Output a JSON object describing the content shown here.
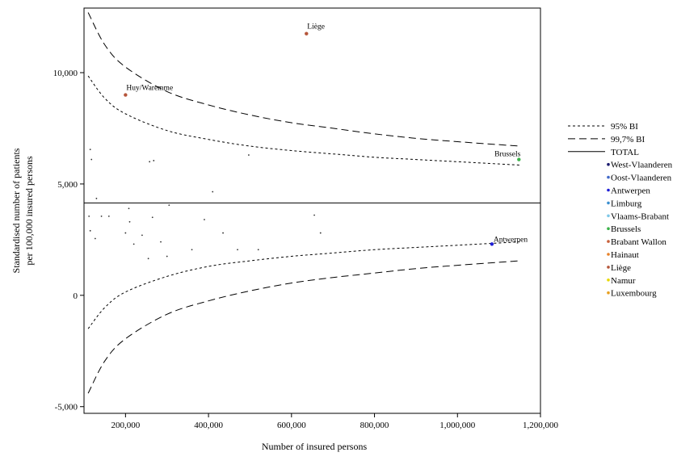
{
  "chart_data": {
    "type": "scatter",
    "title": "",
    "xlabel": "Number of insured persons",
    "ylabel_lines": [
      "Standardised number of patients",
      "per 100,000 insured persons"
    ],
    "xlim": [
      100000,
      1200000
    ],
    "ylim": [
      -5300,
      12900
    ],
    "x_ticks": [
      200000,
      400000,
      600000,
      800000,
      1000000,
      1200000
    ],
    "x_tick_labels": [
      "200,000",
      "400,000",
      "600,000",
      "800,000",
      "1,000,000",
      "1,200,000"
    ],
    "y_ticks": [
      -5000,
      0,
      5000,
      10000
    ],
    "y_tick_labels": [
      "-5,000",
      "0",
      "5,000",
      "10,000"
    ],
    "grid": false,
    "legend_position": "right",
    "total": 4150,
    "legend": [
      {
        "label": "95% BI",
        "style": "short-dash"
      },
      {
        "label": "99,7% BI",
        "style": "long-dash"
      },
      {
        "label": "TOTAL",
        "style": "solid"
      },
      {
        "label": "West-Vlaanderen",
        "style": "dot",
        "color": "#1a1a6e"
      },
      {
        "label": "Oost-Vlaanderen",
        "style": "dot",
        "color": "#4169c8"
      },
      {
        "label": "Antwerpen",
        "style": "dot",
        "color": "#1f1fd6"
      },
      {
        "label": "Limburg",
        "style": "dot",
        "color": "#3a8fd0"
      },
      {
        "label": "Vlaams-Brabant",
        "style": "dot",
        "color": "#7ec8e8"
      },
      {
        "label": "Brussels",
        "style": "dot",
        "color": "#3cb34a"
      },
      {
        "label": "Brabant Wallon",
        "style": "dot",
        "color": "#c8603a"
      },
      {
        "label": "Hainaut",
        "style": "dot",
        "color": "#e8822a"
      },
      {
        "label": "Liège",
        "style": "dot",
        "color": "#b5553a"
      },
      {
        "label": "Namur",
        "style": "dot",
        "color": "#e8d800"
      },
      {
        "label": "Luxembourg",
        "style": "dot",
        "color": "#e8a020"
      }
    ],
    "bands": {
      "ci95_upper": [
        [
          110000,
          9850
        ],
        [
          150000,
          8850
        ],
        [
          200000,
          8150
        ],
        [
          300000,
          7400
        ],
        [
          400000,
          7000
        ],
        [
          500000,
          6700
        ],
        [
          600000,
          6500
        ],
        [
          700000,
          6350
        ],
        [
          800000,
          6200
        ],
        [
          900000,
          6100
        ],
        [
          1000000,
          6000
        ],
        [
          1150000,
          5850
        ]
      ],
      "ci95_lower": [
        [
          110000,
          -1500
        ],
        [
          150000,
          -550
        ],
        [
          200000,
          150
        ],
        [
          300000,
          850
        ],
        [
          400000,
          1300
        ],
        [
          500000,
          1550
        ],
        [
          600000,
          1750
        ],
        [
          700000,
          1900
        ],
        [
          800000,
          2050
        ],
        [
          900000,
          2150
        ],
        [
          1000000,
          2250
        ],
        [
          1150000,
          2400
        ]
      ],
      "ci997_upper": [
        [
          110000,
          12700
        ],
        [
          150000,
          11250
        ],
        [
          200000,
          10250
        ],
        [
          300000,
          9150
        ],
        [
          400000,
          8550
        ],
        [
          500000,
          8100
        ],
        [
          600000,
          7750
        ],
        [
          700000,
          7500
        ],
        [
          800000,
          7250
        ],
        [
          900000,
          7050
        ],
        [
          1000000,
          6900
        ],
        [
          1150000,
          6700
        ]
      ],
      "ci997_lower": [
        [
          110000,
          -4400
        ],
        [
          150000,
          -2950
        ],
        [
          200000,
          -1950
        ],
        [
          300000,
          -850
        ],
        [
          400000,
          -250
        ],
        [
          500000,
          200
        ],
        [
          600000,
          550
        ],
        [
          700000,
          800
        ],
        [
          800000,
          1000
        ],
        [
          900000,
          1200
        ],
        [
          1000000,
          1350
        ],
        [
          1150000,
          1550
        ]
      ]
    },
    "small_points": [
      [
        115000,
        6550
      ],
      [
        118000,
        6100
      ],
      [
        130000,
        4350
      ],
      [
        258000,
        6000
      ],
      [
        268000,
        6050
      ],
      [
        410000,
        4650
      ],
      [
        497000,
        6300
      ],
      [
        112000,
        3550
      ],
      [
        115000,
        2900
      ],
      [
        127000,
        2550
      ],
      [
        142000,
        3550
      ],
      [
        160000,
        3550
      ],
      [
        200000,
        2800
      ],
      [
        208000,
        3900
      ],
      [
        210000,
        3300
      ],
      [
        220000,
        2300
      ],
      [
        240000,
        2700
      ],
      [
        255000,
        1650
      ],
      [
        265000,
        3500
      ],
      [
        285000,
        2400
      ],
      [
        300000,
        1750
      ],
      [
        305000,
        4050
      ],
      [
        360000,
        2050
      ],
      [
        390000,
        3400
      ],
      [
        435000,
        2800
      ],
      [
        470000,
        2050
      ],
      [
        520000,
        2050
      ],
      [
        655000,
        3600
      ],
      [
        670000,
        2800
      ]
    ],
    "highlighted_points": [
      {
        "label": "Liège",
        "x": 636000,
        "y": 11750,
        "color": "#b5553a"
      },
      {
        "label": "Huy/Waremme",
        "x": 200000,
        "y": 9000,
        "color": "#b5553a"
      },
      {
        "label": "Brussels",
        "x": 1148000,
        "y": 6100,
        "color": "#3cb34a"
      },
      {
        "label": "Antwerpen",
        "x": 1083000,
        "y": 2300,
        "color": "#1f1fd6"
      }
    ]
  }
}
